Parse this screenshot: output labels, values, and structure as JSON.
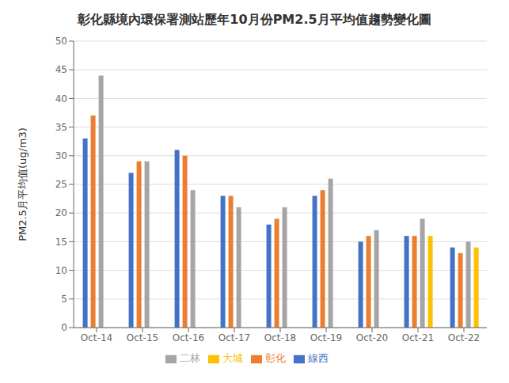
{
  "chart_data": {
    "type": "bar",
    "title": "彰化縣境內環保署測站歷年10月份PM2.5月平均值趨勢變化圖",
    "ylabel": "PM2.5月平均值(ug/m3)",
    "categories": [
      "Oct-14",
      "Oct-15",
      "Oct-16",
      "Oct-17",
      "Oct-18",
      "Oct-19",
      "Oct-20",
      "Oct-21",
      "Oct-22"
    ],
    "series": [
      {
        "name": "線西",
        "color": "#4472C4",
        "values": [
          33,
          27,
          31,
          23,
          18,
          23,
          15,
          16,
          14
        ]
      },
      {
        "name": "彰化",
        "color": "#ED7D31",
        "values": [
          37,
          29,
          30,
          23,
          19,
          24,
          16,
          16,
          13
        ]
      },
      {
        "name": "二林",
        "color": "#A5A5A5",
        "values": [
          44,
          29,
          24,
          21,
          21,
          26,
          17,
          19,
          15
        ]
      },
      {
        "name": "大城",
        "color": "#FFC000",
        "values": [
          null,
          null,
          null,
          null,
          null,
          null,
          null,
          16,
          14
        ]
      }
    ],
    "ylim": [
      0,
      50
    ],
    "yticks": [
      0,
      5,
      10,
      15,
      20,
      25,
      30,
      35,
      40,
      45,
      50
    ],
    "grid": true,
    "legend": "bottom"
  }
}
